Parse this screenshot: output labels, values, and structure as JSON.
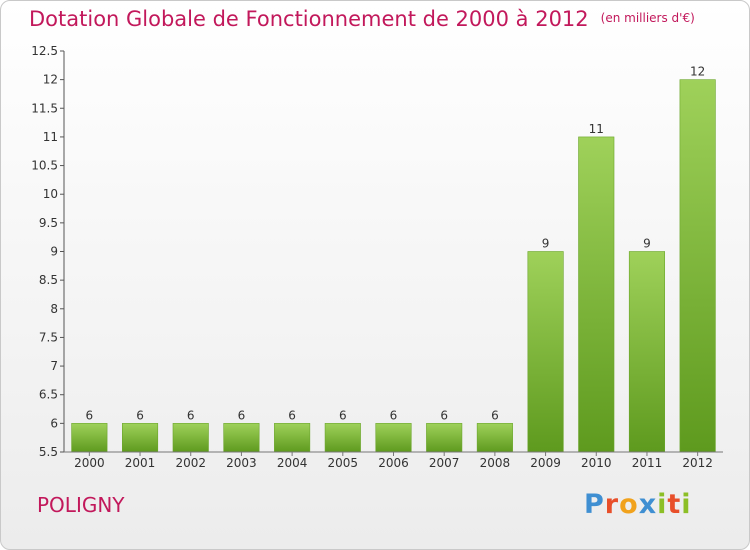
{
  "header": {
    "title": "Dotation Globale de Fonctionnement de 2000 à 2012",
    "unit": "(en milliers d'€)"
  },
  "footer": {
    "commune": "POLIGNY",
    "logo_letters": [
      "P",
      "r",
      "o",
      "x",
      "i",
      "t",
      "i"
    ],
    "logo_colors": [
      "#3f8fd2",
      "#e84f2a",
      "#f1a21c",
      "#3f8fd2",
      "#8cbf26",
      "#e84f2a",
      "#8cbf26"
    ]
  },
  "chart_data": {
    "type": "bar",
    "categories": [
      "2000",
      "2001",
      "2002",
      "2003",
      "2004",
      "2005",
      "2006",
      "2007",
      "2008",
      "2009",
      "2010",
      "2011",
      "2012"
    ],
    "values": [
      6,
      6,
      6,
      6,
      6,
      6,
      6,
      6,
      6,
      9,
      11,
      9,
      12
    ],
    "data_labels": [
      "6",
      "6",
      "6",
      "6",
      "6",
      "6",
      "6",
      "6",
      "6",
      "9",
      "11",
      "9",
      "12"
    ],
    "ylim": [
      5.5,
      12.5
    ],
    "yticks": [
      5.5,
      6,
      6.5,
      7,
      7.5,
      8,
      8.5,
      9,
      9.5,
      10,
      10.5,
      11,
      11.5,
      12,
      12.5
    ],
    "ytick_labels": [
      "5.5",
      "6",
      "6.5",
      "7",
      "7.5",
      "8",
      "8.5",
      "9",
      "9.5",
      "10",
      "10.5",
      "11",
      "11.5",
      "12",
      "12.5"
    ],
    "bar_color": "#7cb935",
    "bar_color_light": "#9fd15a",
    "bar_color_dark": "#5e9a1e",
    "grid": false
  }
}
